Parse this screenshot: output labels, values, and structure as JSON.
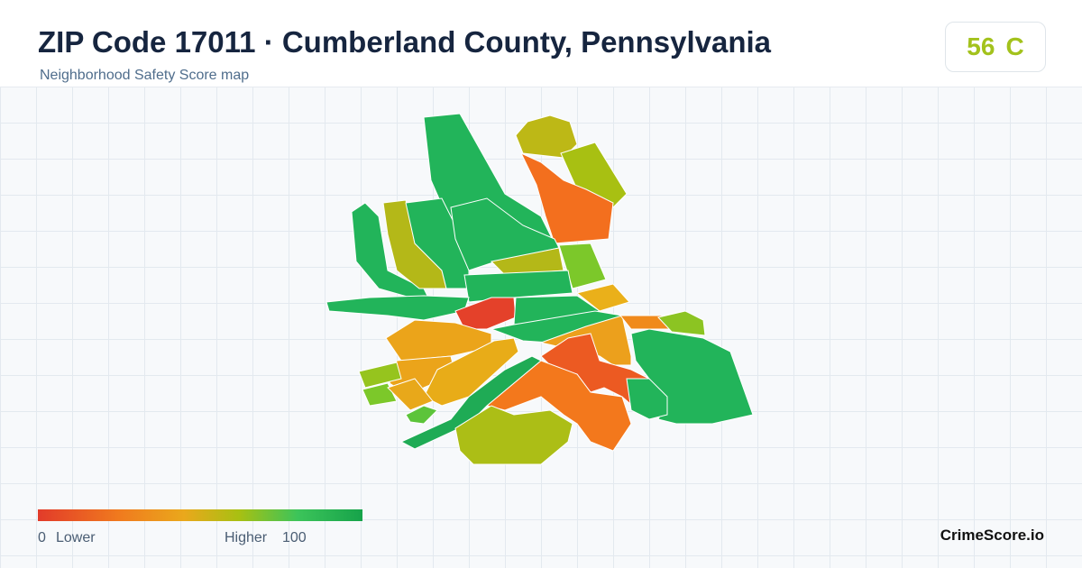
{
  "header": {
    "title": "ZIP Code 17011 · Cumberland County, Pennsylvania",
    "subtitle": "Neighborhood Safety Score map"
  },
  "score": {
    "value": 56,
    "grade": "C"
  },
  "legend": {
    "min": 0,
    "low_label": "Lower",
    "high_label": "Higher",
    "max": 100
  },
  "brand": "CrimeScore.io"
}
